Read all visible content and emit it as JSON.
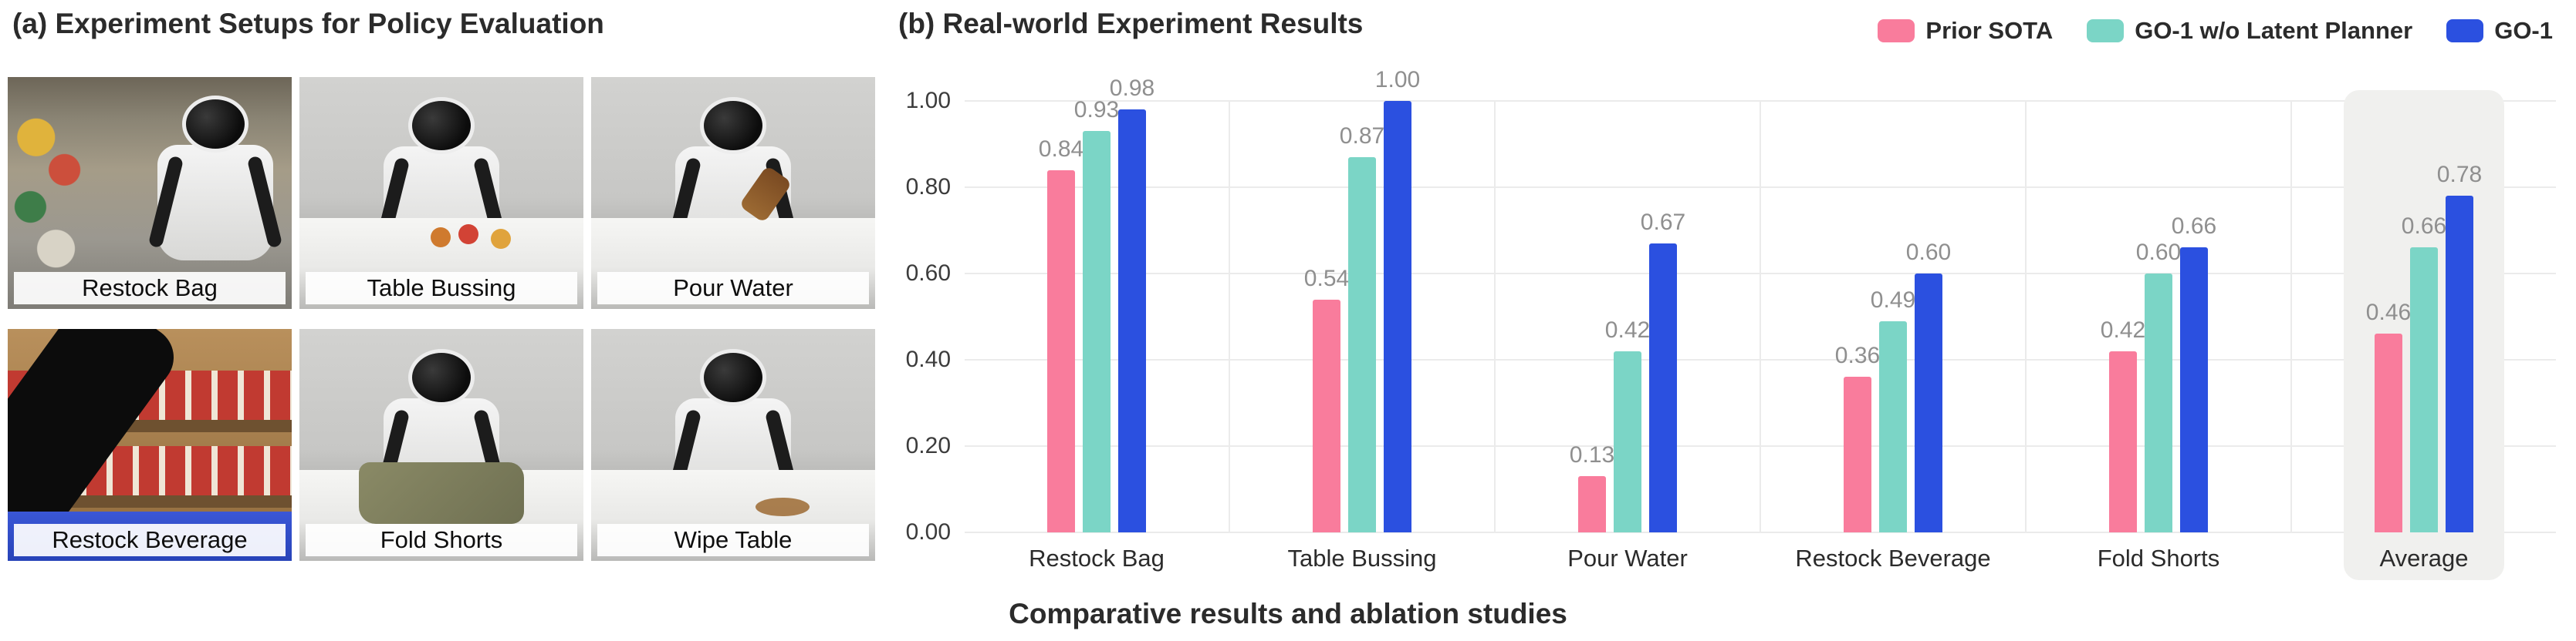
{
  "panel_a": {
    "title": "(a) Experiment Setups for Policy Evaluation",
    "setups": [
      {
        "label": "Restock Bag"
      },
      {
        "label": "Table Bussing"
      },
      {
        "label": "Pour Water"
      },
      {
        "label": "Restock Beverage"
      },
      {
        "label": "Fold Shorts"
      },
      {
        "label": "Wipe Table"
      }
    ]
  },
  "panel_b": {
    "title": "(b) Real-world Experiment Results",
    "caption": "Comparative results and ablation studies",
    "legend": [
      {
        "label": "Prior SOTA",
        "color": "#F97C9C"
      },
      {
        "label": "GO-1 w/o Latent Planner",
        "color": "#7BD5C6"
      },
      {
        "label": "GO-1",
        "color": "#2B50E0"
      }
    ]
  },
  "chart_data": {
    "type": "bar",
    "title": "(b) Real-world Experiment Results",
    "categories": [
      "Restock Bag",
      "Table Bussing",
      "Pour Water",
      "Restock Beverage",
      "Fold Shorts",
      "Average"
    ],
    "series": [
      {
        "name": "Prior SOTA",
        "color": "#F97C9C",
        "values": [
          0.84,
          0.54,
          0.13,
          0.36,
          0.42,
          0.46
        ]
      },
      {
        "name": "GO-1 w/o Latent Planner",
        "color": "#7BD5C6",
        "values": [
          0.93,
          0.87,
          0.42,
          0.49,
          0.6,
          0.66
        ]
      },
      {
        "name": "GO-1",
        "color": "#2B50E0",
        "values": [
          0.98,
          1.0,
          0.67,
          0.6,
          0.66,
          0.78
        ]
      }
    ],
    "xlabel": "",
    "ylabel": "",
    "ylim": [
      0,
      1.0
    ],
    "yticks": [
      0.0,
      0.2,
      0.4,
      0.6,
      0.8,
      1.0
    ],
    "grid": true,
    "legend_position": "top-right",
    "highlight_category": "Average",
    "value_label_format": "0.00",
    "caption": "Comparative results and ablation studies"
  }
}
